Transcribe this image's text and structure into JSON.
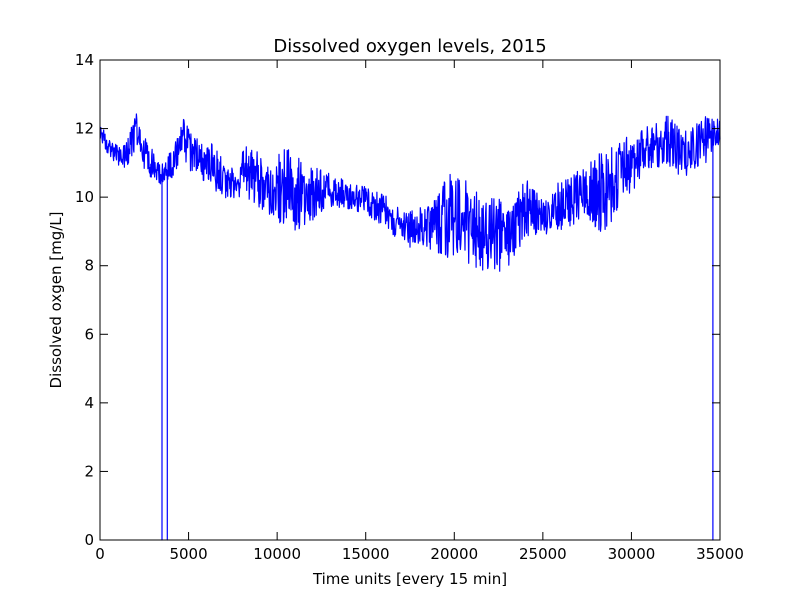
{
  "chart_data": {
    "type": "line",
    "title": "Dissolved oxygen levels, 2015",
    "xlabel": "Time units [every 15 min]",
    "ylabel": "Dissolved oxgen [mg/L]",
    "xlim": [
      0,
      35000
    ],
    "ylim": [
      0,
      14
    ],
    "xticks": [
      0,
      5000,
      10000,
      15000,
      20000,
      25000,
      30000,
      35000
    ],
    "yticks": [
      0,
      2,
      4,
      6,
      8,
      10,
      12,
      14
    ],
    "grid": false,
    "legend": "none",
    "series": [
      {
        "color": "#0000ff",
        "envelope": {
          "x": [
            0,
            500,
            1000,
            1500,
            2000,
            2500,
            3000,
            3400,
            3800,
            4200,
            4800,
            5200,
            5800,
            6200,
            6800,
            7500,
            8200,
            9000,
            9800,
            10500,
            11200,
            12000,
            12800,
            13500,
            14200,
            15000,
            15800,
            16500,
            17200,
            18000,
            18800,
            19500,
            20200,
            21000,
            21800,
            22500,
            23200,
            23800,
            24400,
            25000,
            25500,
            26000,
            26800,
            27500,
            28200,
            29000,
            29800,
            30500,
            31200,
            32000,
            32800,
            33500,
            34200,
            34500,
            34800,
            35000
          ],
          "upper": [
            12.2,
            11.7,
            11.5,
            11.6,
            12.5,
            11.8,
            11.4,
            10.9,
            11.2,
            11.6,
            12.4,
            11.9,
            11.5,
            11.7,
            11.2,
            11.0,
            11.5,
            11.3,
            11.1,
            11.5,
            11.2,
            10.9,
            10.8,
            10.6,
            10.4,
            10.3,
            10.2,
            9.9,
            9.6,
            9.7,
            9.9,
            10.8,
            10.6,
            10.4,
            10.2,
            10.0,
            9.6,
            10.7,
            10.3,
            10.0,
            10.2,
            10.5,
            10.8,
            11.0,
            11.3,
            11.5,
            11.8,
            11.9,
            12.2,
            12.4,
            12.0,
            12.1,
            12.4,
            12.6,
            12.4,
            12.2
          ],
          "lower": [
            11.7,
            11.2,
            10.9,
            10.8,
            11.4,
            10.8,
            10.5,
            10.3,
            10.5,
            10.5,
            10.9,
            10.7,
            10.5,
            10.4,
            10.0,
            9.8,
            10.0,
            9.7,
            9.4,
            9.1,
            9.0,
            9.3,
            9.6,
            9.7,
            9.6,
            9.5,
            9.2,
            8.9,
            8.5,
            8.6,
            8.4,
            8.0,
            8.2,
            8.0,
            7.8,
            7.8,
            7.8,
            8.7,
            8.9,
            8.9,
            8.9,
            9.0,
            9.2,
            9.3,
            8.9,
            9.3,
            10.0,
            10.5,
            10.8,
            10.9,
            10.5,
            10.8,
            11.0,
            11.2,
            11.4,
            11.6
          ]
        },
        "mean": [
          12.0,
          11.45,
          11.2,
          11.2,
          11.95,
          11.3,
          10.95,
          10.6,
          10.85,
          11.05,
          11.65,
          11.3,
          11.0,
          11.05,
          10.6,
          10.4,
          10.75,
          10.5,
          10.25,
          10.3,
          10.1,
          10.1,
          10.2,
          10.15,
          10.0,
          9.9,
          9.7,
          9.4,
          9.05,
          9.15,
          9.15,
          9.4,
          9.4,
          9.2,
          9.0,
          8.9,
          8.7,
          9.7,
          9.6,
          9.45,
          9.55,
          9.75,
          10.0,
          10.15,
          10.1,
          10.4,
          10.9,
          11.2,
          11.5,
          11.65,
          11.25,
          11.45,
          11.7,
          11.9,
          11.9,
          11.9
        ],
        "dropouts": [
          3500,
          3800,
          34600
        ]
      }
    ]
  }
}
